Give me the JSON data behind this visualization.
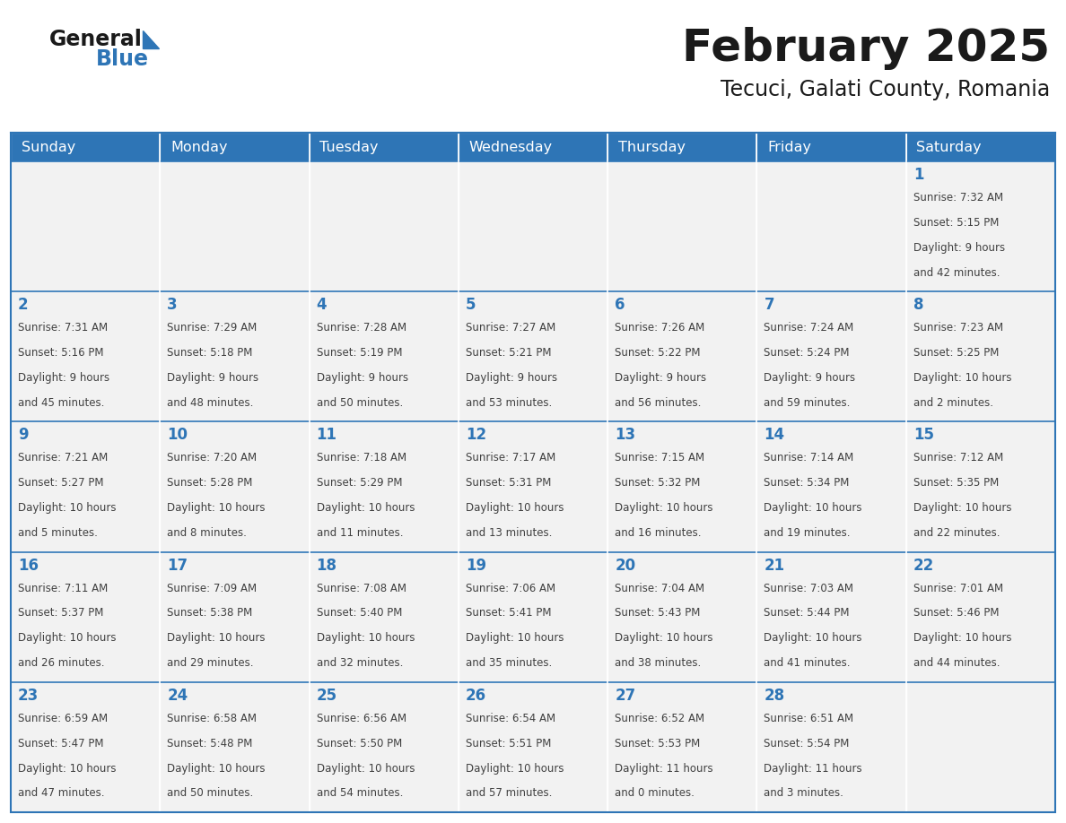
{
  "title": "February 2025",
  "subtitle": "Tecuci, Galati County, Romania",
  "header_color": "#2E75B6",
  "header_text_color": "#FFFFFF",
  "background_color": "#FFFFFF",
  "cell_bg_color": "#F2F2F2",
  "cell_white_bg": "#FFFFFF",
  "day_text_color": "#2E75B6",
  "info_text_color": "#404040",
  "border_color": "#2E75B6",
  "days_of_week": [
    "Sunday",
    "Monday",
    "Tuesday",
    "Wednesday",
    "Thursday",
    "Friday",
    "Saturday"
  ],
  "weeks": [
    [
      {
        "day": null,
        "sunrise": null,
        "sunset": null,
        "daylight": null
      },
      {
        "day": null,
        "sunrise": null,
        "sunset": null,
        "daylight": null
      },
      {
        "day": null,
        "sunrise": null,
        "sunset": null,
        "daylight": null
      },
      {
        "day": null,
        "sunrise": null,
        "sunset": null,
        "daylight": null
      },
      {
        "day": null,
        "sunrise": null,
        "sunset": null,
        "daylight": null
      },
      {
        "day": null,
        "sunrise": null,
        "sunset": null,
        "daylight": null
      },
      {
        "day": 1,
        "sunrise": "7:32 AM",
        "sunset": "5:15 PM",
        "daylight": "9 hours\nand 42 minutes."
      }
    ],
    [
      {
        "day": 2,
        "sunrise": "7:31 AM",
        "sunset": "5:16 PM",
        "daylight": "9 hours\nand 45 minutes."
      },
      {
        "day": 3,
        "sunrise": "7:29 AM",
        "sunset": "5:18 PM",
        "daylight": "9 hours\nand 48 minutes."
      },
      {
        "day": 4,
        "sunrise": "7:28 AM",
        "sunset": "5:19 PM",
        "daylight": "9 hours\nand 50 minutes."
      },
      {
        "day": 5,
        "sunrise": "7:27 AM",
        "sunset": "5:21 PM",
        "daylight": "9 hours\nand 53 minutes."
      },
      {
        "day": 6,
        "sunrise": "7:26 AM",
        "sunset": "5:22 PM",
        "daylight": "9 hours\nand 56 minutes."
      },
      {
        "day": 7,
        "sunrise": "7:24 AM",
        "sunset": "5:24 PM",
        "daylight": "9 hours\nand 59 minutes."
      },
      {
        "day": 8,
        "sunrise": "7:23 AM",
        "sunset": "5:25 PM",
        "daylight": "10 hours\nand 2 minutes."
      }
    ],
    [
      {
        "day": 9,
        "sunrise": "7:21 AM",
        "sunset": "5:27 PM",
        "daylight": "10 hours\nand 5 minutes."
      },
      {
        "day": 10,
        "sunrise": "7:20 AM",
        "sunset": "5:28 PM",
        "daylight": "10 hours\nand 8 minutes."
      },
      {
        "day": 11,
        "sunrise": "7:18 AM",
        "sunset": "5:29 PM",
        "daylight": "10 hours\nand 11 minutes."
      },
      {
        "day": 12,
        "sunrise": "7:17 AM",
        "sunset": "5:31 PM",
        "daylight": "10 hours\nand 13 minutes."
      },
      {
        "day": 13,
        "sunrise": "7:15 AM",
        "sunset": "5:32 PM",
        "daylight": "10 hours\nand 16 minutes."
      },
      {
        "day": 14,
        "sunrise": "7:14 AM",
        "sunset": "5:34 PM",
        "daylight": "10 hours\nand 19 minutes."
      },
      {
        "day": 15,
        "sunrise": "7:12 AM",
        "sunset": "5:35 PM",
        "daylight": "10 hours\nand 22 minutes."
      }
    ],
    [
      {
        "day": 16,
        "sunrise": "7:11 AM",
        "sunset": "5:37 PM",
        "daylight": "10 hours\nand 26 minutes."
      },
      {
        "day": 17,
        "sunrise": "7:09 AM",
        "sunset": "5:38 PM",
        "daylight": "10 hours\nand 29 minutes."
      },
      {
        "day": 18,
        "sunrise": "7:08 AM",
        "sunset": "5:40 PM",
        "daylight": "10 hours\nand 32 minutes."
      },
      {
        "day": 19,
        "sunrise": "7:06 AM",
        "sunset": "5:41 PM",
        "daylight": "10 hours\nand 35 minutes."
      },
      {
        "day": 20,
        "sunrise": "7:04 AM",
        "sunset": "5:43 PM",
        "daylight": "10 hours\nand 38 minutes."
      },
      {
        "day": 21,
        "sunrise": "7:03 AM",
        "sunset": "5:44 PM",
        "daylight": "10 hours\nand 41 minutes."
      },
      {
        "day": 22,
        "sunrise": "7:01 AM",
        "sunset": "5:46 PM",
        "daylight": "10 hours\nand 44 minutes."
      }
    ],
    [
      {
        "day": 23,
        "sunrise": "6:59 AM",
        "sunset": "5:47 PM",
        "daylight": "10 hours\nand 47 minutes."
      },
      {
        "day": 24,
        "sunrise": "6:58 AM",
        "sunset": "5:48 PM",
        "daylight": "10 hours\nand 50 minutes."
      },
      {
        "day": 25,
        "sunrise": "6:56 AM",
        "sunset": "5:50 PM",
        "daylight": "10 hours\nand 54 minutes."
      },
      {
        "day": 26,
        "sunrise": "6:54 AM",
        "sunset": "5:51 PM",
        "daylight": "10 hours\nand 57 minutes."
      },
      {
        "day": 27,
        "sunrise": "6:52 AM",
        "sunset": "5:53 PM",
        "daylight": "11 hours\nand 0 minutes."
      },
      {
        "day": 28,
        "sunrise": "6:51 AM",
        "sunset": "5:54 PM",
        "daylight": "11 hours\nand 3 minutes."
      },
      {
        "day": null,
        "sunrise": null,
        "sunset": null,
        "daylight": null
      }
    ]
  ],
  "fig_width": 11.88,
  "fig_height": 9.18,
  "dpi": 100
}
